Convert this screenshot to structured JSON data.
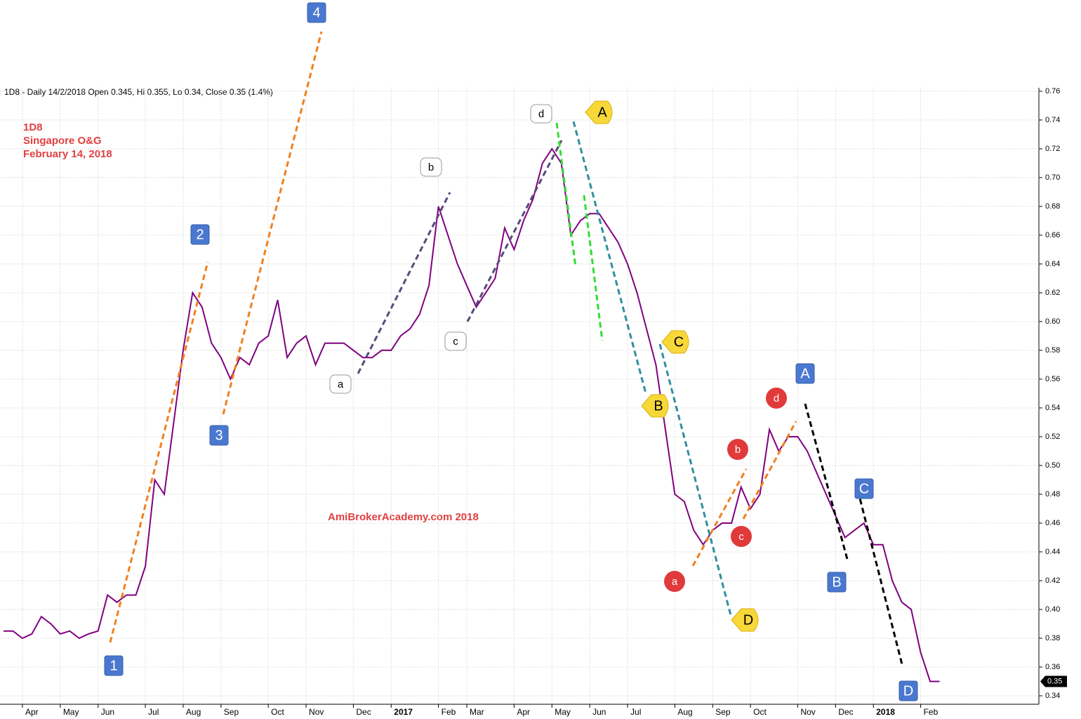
{
  "header": "1D8 - Daily 14/2/2018 Open 0.345, Hi 0.355, Lo 0.34, Close 0.35 (1.4%)",
  "title_lines": [
    "1D8",
    "Singapore O&G",
    "February 14, 2018"
  ],
  "watermark": "AmiBrokerAcademy.com  2018",
  "chart_data": {
    "type": "line",
    "categories": [
      null,
      null,
      "Apr",
      null,
      null,
      null,
      "May",
      null,
      null,
      null,
      "Jun",
      null,
      null,
      null,
      null,
      "Jul",
      null,
      null,
      null,
      "Aug",
      null,
      null,
      null,
      "Sep",
      null,
      null,
      null,
      null,
      "Oct",
      null,
      null,
      null,
      "Nov",
      null,
      null,
      null,
      null,
      "Dec",
      null,
      null,
      null,
      "2017",
      null,
      null,
      null,
      null,
      "Feb",
      null,
      null,
      "Mar",
      null,
      null,
      null,
      null,
      "Apr",
      null,
      null,
      null,
      "May",
      null,
      null,
      null,
      "Jun",
      null,
      null,
      null,
      "Jul",
      null,
      null,
      null,
      null,
      "Aug",
      null,
      null,
      null,
      "Sep",
      null,
      null,
      null,
      "Oct",
      null,
      null,
      null,
      null,
      "Nov",
      null,
      null,
      null,
      "Dec",
      null,
      null,
      null,
      "2018",
      null,
      null,
      null,
      null,
      "Feb",
      null,
      null
    ],
    "series": [
      {
        "name": "1D8",
        "color": "#800080",
        "values": [
          0.385,
          0.385,
          0.38,
          0.383,
          0.395,
          0.39,
          0.383,
          0.385,
          0.38,
          0.383,
          0.385,
          0.41,
          0.405,
          0.41,
          0.41,
          0.43,
          0.49,
          0.48,
          0.53,
          0.58,
          0.62,
          0.61,
          0.585,
          0.575,
          0.56,
          0.575,
          0.57,
          0.585,
          0.59,
          0.615,
          0.575,
          0.585,
          0.59,
          0.57,
          0.585,
          0.585,
          0.585,
          0.58,
          0.575,
          0.575,
          0.58,
          0.58,
          0.59,
          0.595,
          0.605,
          0.625,
          0.68,
          0.66,
          0.64,
          0.625,
          0.61,
          0.62,
          0.63,
          0.665,
          0.65,
          0.67,
          0.685,
          0.71,
          0.72,
          0.71,
          0.66,
          0.67,
          0.675,
          0.675,
          0.665,
          0.655,
          0.64,
          0.62,
          0.595,
          0.57,
          0.525,
          0.48,
          0.475,
          0.455,
          0.445,
          0.455,
          0.46,
          0.46,
          0.485,
          0.47,
          0.48,
          0.525,
          0.51,
          0.52,
          0.52,
          0.51,
          0.495,
          0.48,
          0.465,
          0.45,
          0.455,
          0.46,
          0.445,
          0.445,
          0.42,
          0.405,
          0.4,
          0.37,
          0.35,
          0.35
        ]
      }
    ],
    "last_price": 0.35,
    "ylim": [
      0.3356,
      0.7624
    ],
    "yticks": [
      0.34,
      0.36,
      0.38,
      {
        "value": 0.4,
        "label": "0.40"
      },
      0.42,
      0.44,
      0.46,
      0.48,
      {
        "value": 0.5,
        "label": "0.50"
      },
      0.52,
      0.54,
      0.56,
      0.58,
      {
        "value": 0.6,
        "label": "0.60"
      },
      0.62,
      0.64,
      0.66,
      0.68,
      {
        "value": 0.7,
        "label": "0.70"
      },
      0.72,
      0.74,
      0.76
    ],
    "grid": true
  },
  "wave_labels": {
    "blue_numbers": [
      "1",
      "2",
      "3",
      "4"
    ],
    "white_letters": [
      "a",
      "b",
      "c",
      "d"
    ],
    "yellow_letters": [
      "A",
      "B",
      "C",
      "D"
    ],
    "red_letters": [
      "a",
      "b",
      "c",
      "d"
    ],
    "blue_letters": [
      "A",
      "B",
      "C",
      "D"
    ]
  }
}
